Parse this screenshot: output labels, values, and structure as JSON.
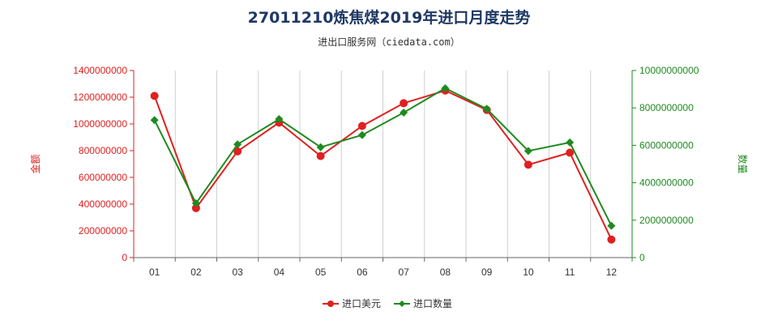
{
  "chart_data": {
    "type": "line",
    "title": "27011210炼焦煤2019年进口月度走势",
    "subtitle": "进出口服务网（ciedata.com）",
    "categories": [
      "01",
      "02",
      "03",
      "04",
      "05",
      "06",
      "07",
      "08",
      "09",
      "10",
      "11",
      "12"
    ],
    "left_axis": {
      "label": "金额",
      "range": [
        0,
        1400000000
      ],
      "ticks": [
        "0",
        "200000000",
        "400000000",
        "600000000",
        "800000000",
        "1000000000",
        "1200000000",
        "1400000000"
      ],
      "color": "#e02020"
    },
    "right_axis": {
      "label": "数量",
      "range": [
        0,
        10000000000
      ],
      "ticks": [
        "0",
        "2000000000",
        "4000000000",
        "6000000000",
        "8000000000",
        "10000000000"
      ],
      "color": "#1f8a1f"
    },
    "series": [
      {
        "name": "进口美元",
        "axis": "left",
        "color": "#e02020",
        "marker": "circle",
        "values": [
          1210000000,
          370000000,
          795000000,
          1010000000,
          760000000,
          985000000,
          1155000000,
          1250000000,
          1105000000,
          695000000,
          785000000,
          135000000
        ]
      },
      {
        "name": "进口数量",
        "axis": "right",
        "color": "#1f8a1f",
        "marker": "diamond",
        "values": [
          7350000000,
          2900000000,
          6050000000,
          7400000000,
          5900000000,
          6550000000,
          7750000000,
          9050000000,
          7950000000,
          5700000000,
          6150000000,
          1700000000
        ]
      }
    ],
    "grid": "vertical",
    "legend": "bottom-center"
  }
}
